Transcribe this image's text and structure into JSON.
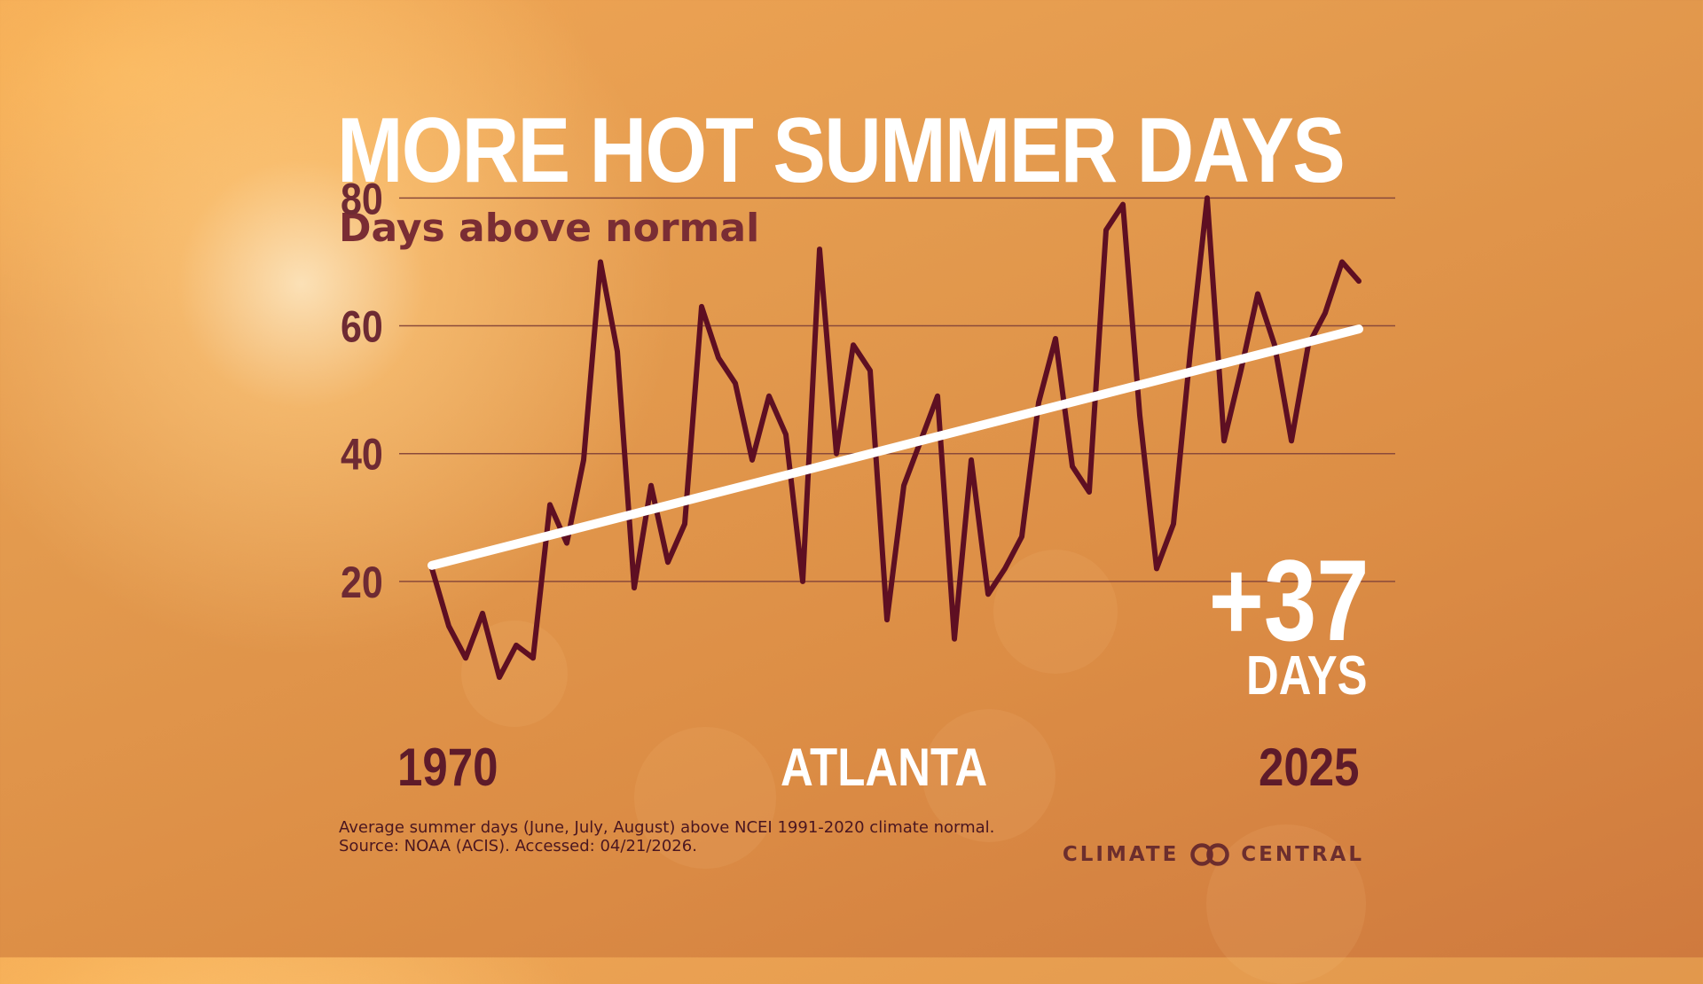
{
  "title": "MORE HOT SUMMER DAYS",
  "subtitle": "Days above normal",
  "city": "ATLANTA",
  "change": {
    "value": "+37",
    "unit": "DAYS"
  },
  "notes": {
    "line1": "Average summer days (June, July, August) above NCEI 1991-2020 climate normal.",
    "line2": "Source: NOAA (ACIS). Accessed: 04/21/2026."
  },
  "logo": {
    "left": "CLIMATE",
    "right": "CENTRAL"
  },
  "colors": {
    "series": "#5e0f22",
    "trend": "#ffffff",
    "gridline": "#8a4a3a",
    "tick": "#6e2a33"
  },
  "chart_data": {
    "type": "line",
    "title": "MORE HOT SUMMER DAYS",
    "subtitle": "Days above normal",
    "x_start_label": "1970",
    "x_end_label": "2025",
    "x": [
      1970,
      1971,
      1972,
      1973,
      1974,
      1975,
      1976,
      1977,
      1978,
      1979,
      1980,
      1981,
      1982,
      1983,
      1984,
      1985,
      1986,
      1987,
      1988,
      1989,
      1990,
      1991,
      1992,
      1993,
      1994,
      1995,
      1996,
      1997,
      1998,
      1999,
      2000,
      2001,
      2002,
      2003,
      2004,
      2005,
      2006,
      2007,
      2008,
      2009,
      2010,
      2011,
      2012,
      2013,
      2014,
      2015,
      2016,
      2017,
      2018,
      2019,
      2020,
      2021,
      2022,
      2023,
      2024,
      2025
    ],
    "series": [
      {
        "values": [
          22,
          13,
          8,
          15,
          5,
          10,
          8,
          32,
          26,
          39,
          70,
          56,
          19,
          35,
          23,
          29,
          63,
          55,
          51,
          39,
          49,
          43,
          20,
          72,
          40,
          57,
          53,
          14,
          35,
          42,
          49,
          11,
          39,
          18,
          22,
          27,
          48,
          58,
          38,
          34,
          75,
          79,
          46,
          22,
          29,
          56,
          80,
          42,
          53,
          65,
          57,
          42,
          57,
          62,
          70,
          67
        ]
      }
    ],
    "trend": {
      "start": 22.5,
      "end": 59.5
    },
    "yticks": [
      20,
      40,
      60,
      80
    ],
    "ylim": [
      0,
      82
    ],
    "xlim": [
      1970,
      2025
    ],
    "grid": true
  }
}
